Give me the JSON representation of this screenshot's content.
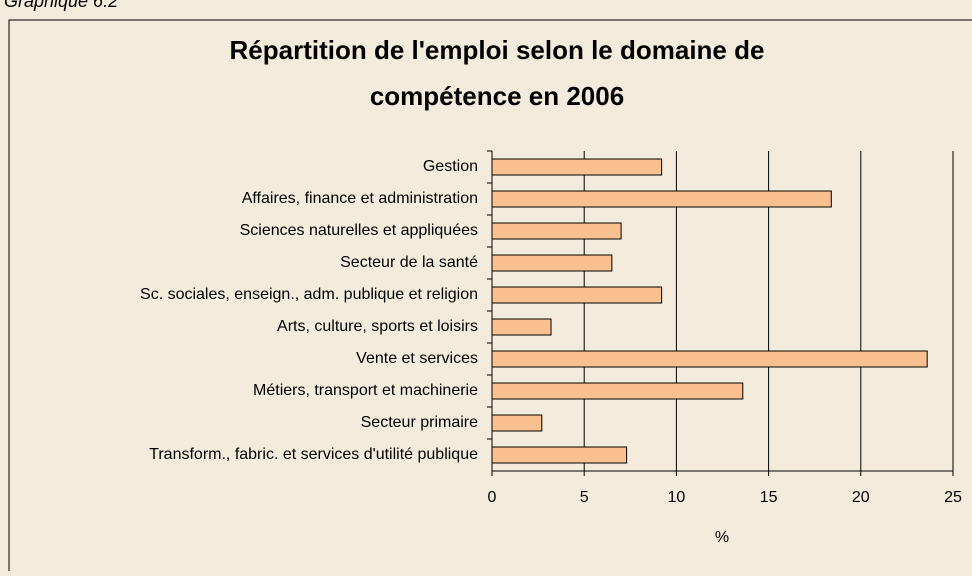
{
  "caption": "Graphique 6.2",
  "chart_data": {
    "type": "bar",
    "orientation": "horizontal",
    "title": [
      "Répartition de l'emploi selon le domaine de",
      "compétence en 2006"
    ],
    "x_label": "%",
    "categories": [
      "Gestion",
      "Affaires, finance et administration",
      "Sciences naturelles et appliquées",
      "Secteur de la santé",
      "Sc. sociales, enseign., adm. publique et religion",
      "Arts, culture, sports et loisirs",
      "Vente et services",
      "Métiers, transport et machinerie",
      "Secteur primaire",
      "Transform., fabric. et services d'utilité publique"
    ],
    "values": [
      9.2,
      18.4,
      7.0,
      6.5,
      9.2,
      3.2,
      23.6,
      13.6,
      2.7,
      7.3
    ],
    "color": "#fac090",
    "xlim": [
      0,
      25
    ],
    "xticks": [
      0,
      5,
      10,
      15,
      20,
      25
    ],
    "grid": true
  }
}
